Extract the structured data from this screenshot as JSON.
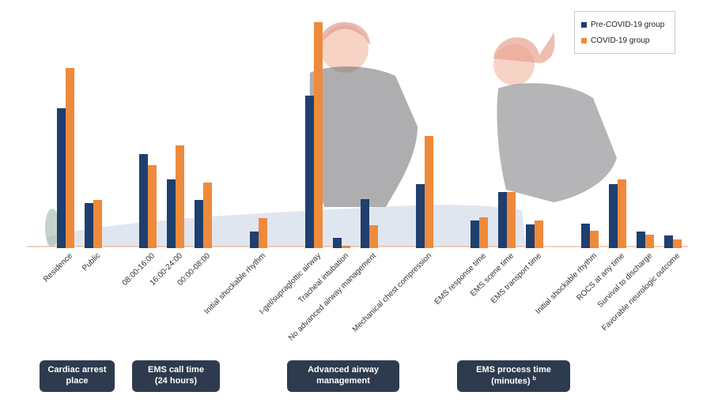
{
  "chart_data": {
    "type": "bar",
    "categories": [
      "Residence",
      "Public",
      "08:00-16:00",
      "16:00-24:00",
      "00:00-08:00",
      "Initial shockable rhythm",
      "I-gel/supraglottic airway",
      "Tracheal intubation",
      "No advanced airway management",
      "Mechanical chest compression",
      "EMS response time",
      "EMS scene time",
      "EMS transport time",
      "Initial shockable rhythm",
      "ROCS at any time",
      "Survival to discharge",
      "Favorable neurologic outcome"
    ],
    "series": [
      {
        "name": "Pre-COVID-19 group",
        "color": "#1f3f6e",
        "values": [
          177,
          57,
          119,
          87,
          61,
          21,
          193,
          13,
          62,
          81,
          35,
          71,
          30,
          31,
          81,
          21,
          16
        ]
      },
      {
        "name": "COVID-19 group",
        "color": "#ee8a3c",
        "values": [
          228,
          61,
          105,
          130,
          83,
          38,
          286,
          3,
          29,
          142,
          39,
          71,
          35,
          22,
          87,
          17,
          11
        ]
      }
    ],
    "ylim": [
      0,
      300
    ],
    "grid": false,
    "legend_position": "top-right",
    "groups": [
      {
        "label_lines": [
          "Cardiac arrest",
          "place"
        ]
      },
      {
        "label_lines": [
          "EMS call time",
          "(24 hours)"
        ]
      },
      {
        "label_lines": [
          "Advanced airway",
          "management"
        ]
      },
      {
        "label_lines": [
          "EMS process time",
          "(minutes)"
        ],
        "footnote": "b"
      }
    ]
  }
}
